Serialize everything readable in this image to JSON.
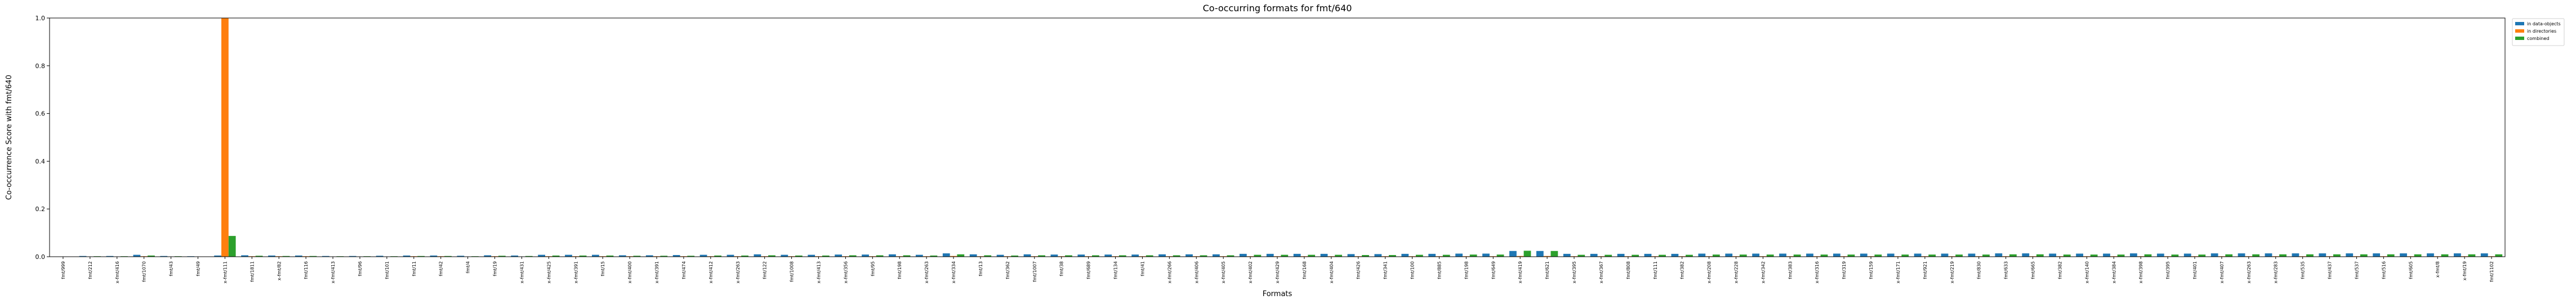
{
  "chart_data": {
    "type": "bar",
    "title": "Co-occurring formats for fmt/640",
    "xlabel": "Formats",
    "ylabel": "Co-occurrence Score with fmt/640",
    "ylim": [
      0,
      1.0
    ],
    "yticks": [
      "0.0",
      "0.2",
      "0.4",
      "0.6",
      "0.8",
      "1.0"
    ],
    "legend_position": "outside-top-right",
    "grid": false,
    "categories": [
      "fmt/999",
      "fmt/212",
      "x-fmt/416",
      "fmt/1070",
      "fmt/43",
      "fmt/49",
      "x-fmt/111",
      "fmt/1811",
      "x-fmt/82",
      "fmt/116",
      "x-fmt/413",
      "fmt/96",
      "fmt/101",
      "fmt/11",
      "fmt/42",
      "fmt/4",
      "fmt/19",
      "x-fmt/431",
      "x-fmt/425",
      "x-fmt/391",
      "fmt/15",
      "x-fmt/400",
      "x-fmt/391",
      "fmt/474",
      "x-fmt/412",
      "x-fmt/263",
      "fmt/122",
      "fmt/1008",
      "x-fmt/413",
      "x-fmt/356",
      "fmt/95",
      "fmt/198",
      "x-fmt/263",
      "x-fmt/334",
      "fmt/13",
      "fmt/362",
      "fmt/1007",
      "fmt/38",
      "fmt/689",
      "fmt/134",
      "fmt/41",
      "x-fmt/266",
      "x-fmt/406",
      "x-fmt/405",
      "x-fmt/402",
      "x-fmt/429",
      "fmt/168",
      "x-fmt/404",
      "fmt/426",
      "fmt/341",
      "fmt/100",
      "fmt/885",
      "fmt/198",
      "fmt/649",
      "x-fmt/419",
      "fmt/621",
      "x-fmt/395",
      "x-fmt/367",
      "fmt/808",
      "fmt/111",
      "fmt/382",
      "x-fmt/208",
      "x-fmt/228",
      "x-fmt/342",
      "fmt/383",
      "x-fmt/316",
      "fmt/319",
      "fmt/159",
      "x-fmt/171",
      "fmt/921",
      "x-fmt/219",
      "fmt/830",
      "fmt/633",
      "fmt/665",
      "fmt/382",
      "x-fmt/140",
      "x-fmt/384",
      "x-fmt/398",
      "fmt/395",
      "fmt/401",
      "x-fmt/407",
      "x-fmt/263",
      "x-fmt/283",
      "fmt/535",
      "fmt/437",
      "fmt/537",
      "fmt/516",
      "fmt/605",
      "x-fmt/8",
      "x-fmt/19",
      "fmt/1102"
    ],
    "series": [
      {
        "name": "in data-objects",
        "color": "#1f77b4",
        "values": [
          0.001,
          0.003,
          0.003,
          0.008,
          0.003,
          0.002,
          0.005,
          0.006,
          0.005,
          0.005,
          0.003,
          0.003,
          0.004,
          0.005,
          0.005,
          0.004,
          0.006,
          0.005,
          0.008,
          0.008,
          0.008,
          0.006,
          0.006,
          0.007,
          0.008,
          0.008,
          0.01,
          0.008,
          0.008,
          0.009,
          0.009,
          0.01,
          0.008,
          0.014,
          0.01,
          0.008,
          0.01,
          0.009,
          0.009,
          0.009,
          0.009,
          0.01,
          0.01,
          0.01,
          0.012,
          0.012,
          0.012,
          0.012,
          0.011,
          0.011,
          0.012,
          0.012,
          0.013,
          0.013,
          0.024,
          0.024,
          0.012,
          0.012,
          0.012,
          0.012,
          0.012,
          0.013,
          0.013,
          0.013,
          0.013,
          0.013,
          0.013,
          0.013,
          0.013,
          0.013,
          0.013,
          0.013,
          0.014,
          0.014,
          0.013,
          0.013,
          0.013,
          0.014,
          0.013,
          0.013,
          0.014,
          0.014,
          0.014,
          0.014,
          0.014,
          0.014,
          0.014,
          0.014,
          0.014,
          0.014,
          0.014
        ]
      },
      {
        "name": "in directories",
        "color": "#ff7f0e",
        "values": [
          0.001,
          0.001,
          0.001,
          0.002,
          0.001,
          0.001,
          1.0,
          0.002,
          0.002,
          0.002,
          0.001,
          0.001,
          0.001,
          0.002,
          0.002,
          0.001,
          0.002,
          0.001,
          0.002,
          0.002,
          0.002,
          0.002,
          0.002,
          0.002,
          0.002,
          0.002,
          0.002,
          0.002,
          0.002,
          0.002,
          0.002,
          0.002,
          0.002,
          0.003,
          0.002,
          0.002,
          0.002,
          0.002,
          0.002,
          0.002,
          0.002,
          0.002,
          0.002,
          0.002,
          0.002,
          0.002,
          0.002,
          0.002,
          0.002,
          0.002,
          0.002,
          0.002,
          0.002,
          0.002,
          0.003,
          0.003,
          0.002,
          0.002,
          0.002,
          0.002,
          0.002,
          0.002,
          0.002,
          0.002,
          0.002,
          0.002,
          0.002,
          0.002,
          0.002,
          0.002,
          0.002,
          0.002,
          0.002,
          0.002,
          0.002,
          0.002,
          0.002,
          0.002,
          0.002,
          0.002,
          0.002,
          0.002,
          0.002,
          0.002,
          0.002,
          0.002,
          0.002,
          0.002,
          0.002,
          0.002,
          0.002
        ]
      },
      {
        "name": "combined",
        "color": "#2ca02c",
        "values": [
          0.001,
          0.002,
          0.002,
          0.005,
          0.002,
          0.001,
          0.087,
          0.004,
          0.003,
          0.003,
          0.002,
          0.002,
          0.002,
          0.003,
          0.003,
          0.002,
          0.004,
          0.003,
          0.005,
          0.005,
          0.005,
          0.004,
          0.004,
          0.004,
          0.005,
          0.005,
          0.006,
          0.005,
          0.005,
          0.006,
          0.006,
          0.006,
          0.005,
          0.01,
          0.006,
          0.005,
          0.006,
          0.006,
          0.006,
          0.006,
          0.006,
          0.006,
          0.006,
          0.006,
          0.008,
          0.008,
          0.008,
          0.008,
          0.007,
          0.007,
          0.008,
          0.008,
          0.009,
          0.009,
          0.025,
          0.024,
          0.008,
          0.008,
          0.008,
          0.008,
          0.008,
          0.009,
          0.009,
          0.009,
          0.009,
          0.009,
          0.009,
          0.009,
          0.009,
          0.009,
          0.009,
          0.009,
          0.01,
          0.01,
          0.009,
          0.009,
          0.009,
          0.01,
          0.009,
          0.009,
          0.01,
          0.01,
          0.01,
          0.01,
          0.01,
          0.01,
          0.01,
          0.01,
          0.01,
          0.01,
          0.01
        ]
      }
    ]
  }
}
